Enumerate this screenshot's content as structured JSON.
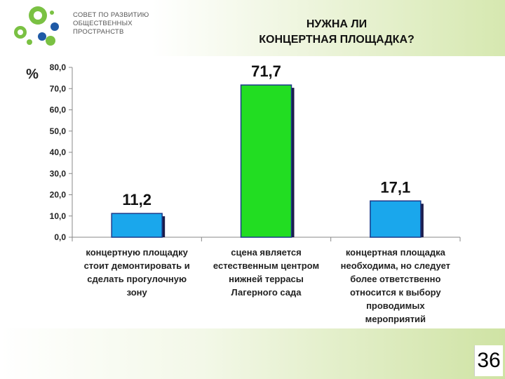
{
  "header": {
    "org_lines": [
      "СОВЕТ ПО РАЗВИТИЮ",
      "ОБЩЕСТВЕННЫХ",
      "ПРОСТРАНСТВ"
    ],
    "title_lines": [
      "НУЖНА ЛИ",
      "КОНЦЕРТНАЯ ПЛОЩАДКА?"
    ]
  },
  "footer": {
    "page_number": "36"
  },
  "colors": {
    "bar_blue": "#1aa7ec",
    "bar_green": "#22dd22",
    "logo_green": "#7ac143",
    "logo_blue": "#1f5aa6"
  },
  "chart_data": {
    "type": "bar",
    "ylabel": "%",
    "ylim": [
      0,
      80
    ],
    "yticks": [
      "0,0",
      "10,0",
      "20,0",
      "30,0",
      "40,0",
      "50,0",
      "60,0",
      "70,0",
      "80,0"
    ],
    "grid": false,
    "categories": [
      [
        "концертную площадку",
        "стоит демонтировать и",
        "сделать прогулочную",
        "зону"
      ],
      [
        "сцена является",
        "естественным центром",
        "нижней террасы",
        "Лагерного сада"
      ],
      [
        "концертная площадка",
        "необходима, но следует",
        "более ответственно",
        "относится к выбору",
        "проводимых",
        "мероприятий"
      ]
    ],
    "values": [
      11.2,
      71.7,
      17.1
    ],
    "value_labels": [
      "11,2",
      "71,7",
      "17,1"
    ],
    "bar_colors": [
      "#1aa7ec",
      "#22dd22",
      "#1aa7ec"
    ]
  }
}
